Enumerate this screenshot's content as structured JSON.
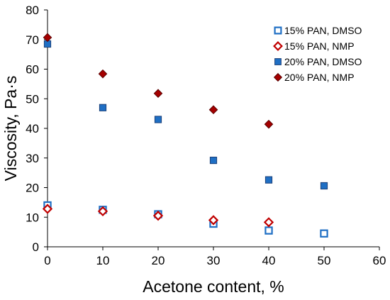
{
  "chart_data": {
    "type": "scatter",
    "xlabel": "Acetone content, %",
    "ylabel": "Viscosity, Pa·s",
    "xlim": [
      0,
      60
    ],
    "ylim": [
      0,
      80
    ],
    "xticks": [
      "0",
      "10",
      "20",
      "30",
      "40",
      "50",
      "60"
    ],
    "yticks": [
      "0",
      "10",
      "20",
      "30",
      "40",
      "50",
      "60",
      "70",
      "80"
    ],
    "grid": false,
    "legend_position": "top-right",
    "series": [
      {
        "name": "15% PAN, DMSO",
        "marker": "square",
        "filled": false,
        "color": "#1f6fc4",
        "x": [
          0,
          10,
          20,
          30,
          40,
          50
        ],
        "y": [
          14,
          12.5,
          11,
          7.8,
          5.5,
          4.5
        ]
      },
      {
        "name": "15% PAN, NMP",
        "marker": "diamond",
        "filled": false,
        "color": "#c00000",
        "x": [
          0,
          10,
          20,
          30,
          40
        ],
        "y": [
          12.8,
          12,
          10.5,
          9,
          8.3
        ]
      },
      {
        "name": "20% PAN, DMSO",
        "marker": "square",
        "filled": true,
        "color": "#1f6fc4",
        "stroke": "#1a3f78",
        "x": [
          0,
          10,
          20,
          30,
          40,
          50
        ],
        "y": [
          68.5,
          47,
          43,
          29.2,
          22.6,
          20.6
        ]
      },
      {
        "name": "20% PAN, NMP",
        "marker": "diamond",
        "filled": true,
        "color": "#a50000",
        "stroke": "#5a0000",
        "x": [
          0,
          10,
          20,
          30,
          40
        ],
        "y": [
          70.7,
          58.4,
          51.8,
          46.3,
          41.4
        ]
      }
    ]
  }
}
